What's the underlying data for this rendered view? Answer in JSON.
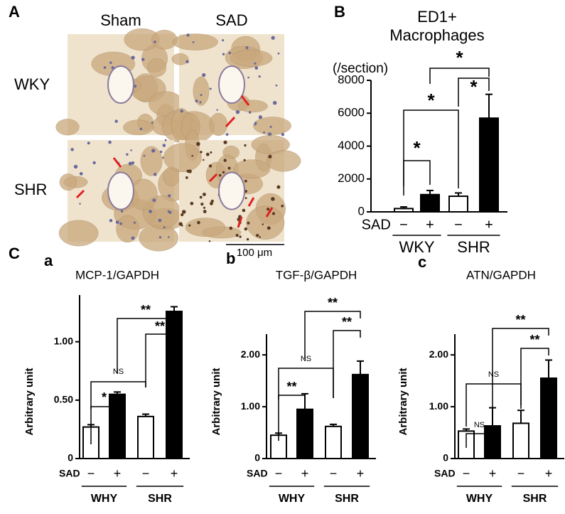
{
  "panel_a": {
    "label": "A",
    "columns": [
      "Sham",
      "SAD"
    ],
    "rows": [
      "WKY",
      "SHR"
    ],
    "scale_bar": "100 μm"
  },
  "panel_c_label": "C",
  "chart_data": [
    {
      "type": "bar",
      "panel": "B",
      "title": [
        "ED1+",
        "Macrophages"
      ],
      "y_unit": "(/section)",
      "x_row_label": "SAD",
      "categories": [
        "−",
        "+",
        "−",
        "+"
      ],
      "groups": [
        "WKY",
        "SHR"
      ],
      "values": [
        200,
        1050,
        950,
        5700
      ],
      "errors": [
        100,
        250,
        200,
        1450
      ],
      "colors": [
        "#ffffff",
        "#000000",
        "#ffffff",
        "#000000"
      ],
      "ylim": [
        0,
        8000
      ],
      "yticks": [
        0,
        2000,
        4000,
        6000,
        8000
      ],
      "annotations": [
        "*",
        "*",
        "*",
        "*"
      ]
    },
    {
      "type": "bar",
      "panel": "a",
      "title": "MCP-1/GAPDH",
      "y_label": "Arbitrary unit",
      "x_row_label": "SAD",
      "categories": [
        "−",
        "+",
        "−",
        "+"
      ],
      "groups": [
        "WHY",
        "SHR"
      ],
      "values": [
        0.27,
        0.55,
        0.36,
        1.26
      ],
      "errors": [
        0.02,
        0.02,
        0.02,
        0.04
      ],
      "colors": [
        "#ffffff",
        "#000000",
        "#ffffff",
        "#000000"
      ],
      "ylim": [
        0,
        1.4
      ],
      "yticks": [
        0,
        {
          "value": 0.5,
          "label": "0.50"
        },
        {
          "value": 1,
          "label": "1.00"
        }
      ],
      "annotations": [
        "**",
        "**",
        "NS",
        "*"
      ]
    },
    {
      "type": "bar",
      "panel": "b",
      "title": "TGF-β/GAPDH",
      "y_label": "Arbitrary unit",
      "x_row_label": "SAD",
      "categories": [
        "−",
        "+",
        "−",
        "+"
      ],
      "groups": [
        "WHY",
        "SHR"
      ],
      "values": [
        0.45,
        0.95,
        0.62,
        1.62
      ],
      "errors": [
        0.04,
        0.3,
        0.04,
        0.26
      ],
      "colors": [
        "#ffffff",
        "#000000",
        "#ffffff",
        "#000000"
      ],
      "ylim": [
        0,
        2.4
      ],
      "yticks": [
        0,
        {
          "value": 1,
          "label": "1.00"
        },
        {
          "value": 2,
          "label": "2.00"
        }
      ],
      "annotations": [
        "**",
        "**",
        "NS",
        "**"
      ]
    },
    {
      "type": "bar",
      "panel": "c",
      "title": "ATN/GAPDH",
      "y_label": "Arbitrary unit",
      "x_row_label": "SAD",
      "categories": [
        "−",
        "+",
        "−",
        "+"
      ],
      "groups": [
        "WHY",
        "SHR"
      ],
      "values": [
        0.53,
        0.63,
        0.68,
        1.55
      ],
      "errors": [
        0.04,
        0.35,
        0.25,
        0.35
      ],
      "colors": [
        "#ffffff",
        "#000000",
        "#ffffff",
        "#000000"
      ],
      "ylim": [
        0,
        2.4
      ],
      "yticks": [
        0,
        {
          "value": 1,
          "label": "1.00"
        },
        {
          "value": 2,
          "label": "2.00"
        }
      ],
      "annotations": [
        "**",
        "**",
        "NS",
        "NS"
      ]
    }
  ]
}
